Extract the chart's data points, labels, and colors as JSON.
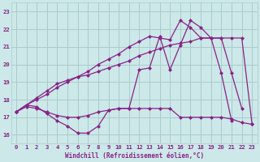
{
  "background_color": "#cce8e8",
  "grid_color": "#aacccc",
  "line_color": "#882288",
  "marker_color": "#882288",
  "xlabel": "Windchill (Refroidissement éolien,°C)",
  "xlim": [
    -0.5,
    23.5
  ],
  "ylim": [
    15.5,
    23.5
  ],
  "yticks": [
    16,
    17,
    18,
    19,
    20,
    21,
    22,
    23
  ],
  "xticks": [
    0,
    1,
    2,
    3,
    4,
    5,
    6,
    7,
    8,
    9,
    10,
    11,
    12,
    13,
    14,
    15,
    16,
    17,
    18,
    19,
    20,
    21,
    22,
    23
  ],
  "series": [
    {
      "x": [
        0,
        1,
        2,
        3,
        4,
        5,
        6,
        7,
        8,
        9,
        10,
        11,
        12,
        13,
        14,
        15,
        16,
        17,
        18,
        19,
        20,
        21
      ],
      "y": [
        17.3,
        17.7,
        17.6,
        17.2,
        16.8,
        16.5,
        16.1,
        16.1,
        16.5,
        17.4,
        17.5,
        17.5,
        19.7,
        19.8,
        21.6,
        19.7,
        21.1,
        22.5,
        22.1,
        21.5,
        19.5,
        16.8
      ]
    },
    {
      "x": [
        0,
        1,
        2,
        3,
        4,
        5,
        6,
        7,
        8,
        9,
        10,
        11,
        12,
        13,
        14,
        15,
        16,
        17,
        18,
        19,
        20,
        21,
        22,
        23
      ],
      "y": [
        17.3,
        17.6,
        17.5,
        17.3,
        17.1,
        17.0,
        17.0,
        17.1,
        17.3,
        17.4,
        17.5,
        17.5,
        17.5,
        17.5,
        17.5,
        17.5,
        17.0,
        17.0,
        17.0,
        17.0,
        17.0,
        16.9,
        16.7,
        16.6
      ]
    },
    {
      "x": [
        0,
        1,
        2,
        3,
        4,
        5,
        6,
        7,
        8,
        9,
        10,
        11,
        12,
        13,
        14,
        15,
        16,
        17,
        18,
        19,
        20,
        21,
        22,
        23
      ],
      "y": [
        17.3,
        17.7,
        18.1,
        18.5,
        18.9,
        19.1,
        19.3,
        19.4,
        19.6,
        19.8,
        20.0,
        20.2,
        20.5,
        20.7,
        20.9,
        21.1,
        21.2,
        21.3,
        21.5,
        21.5,
        21.5,
        21.5,
        21.5,
        16.6
      ]
    },
    {
      "x": [
        0,
        1,
        2,
        3,
        4,
        5,
        6,
        7,
        8,
        9,
        10,
        11,
        12,
        13,
        14,
        15,
        16,
        17,
        18,
        19,
        20,
        21,
        22
      ],
      "y": [
        17.3,
        17.7,
        18.0,
        18.3,
        18.7,
        19.0,
        19.3,
        19.6,
        20.0,
        20.3,
        20.6,
        21.0,
        21.3,
        21.6,
        21.5,
        21.4,
        22.5,
        22.1,
        21.5,
        21.5,
        21.5,
        19.5,
        17.5
      ]
    }
  ]
}
